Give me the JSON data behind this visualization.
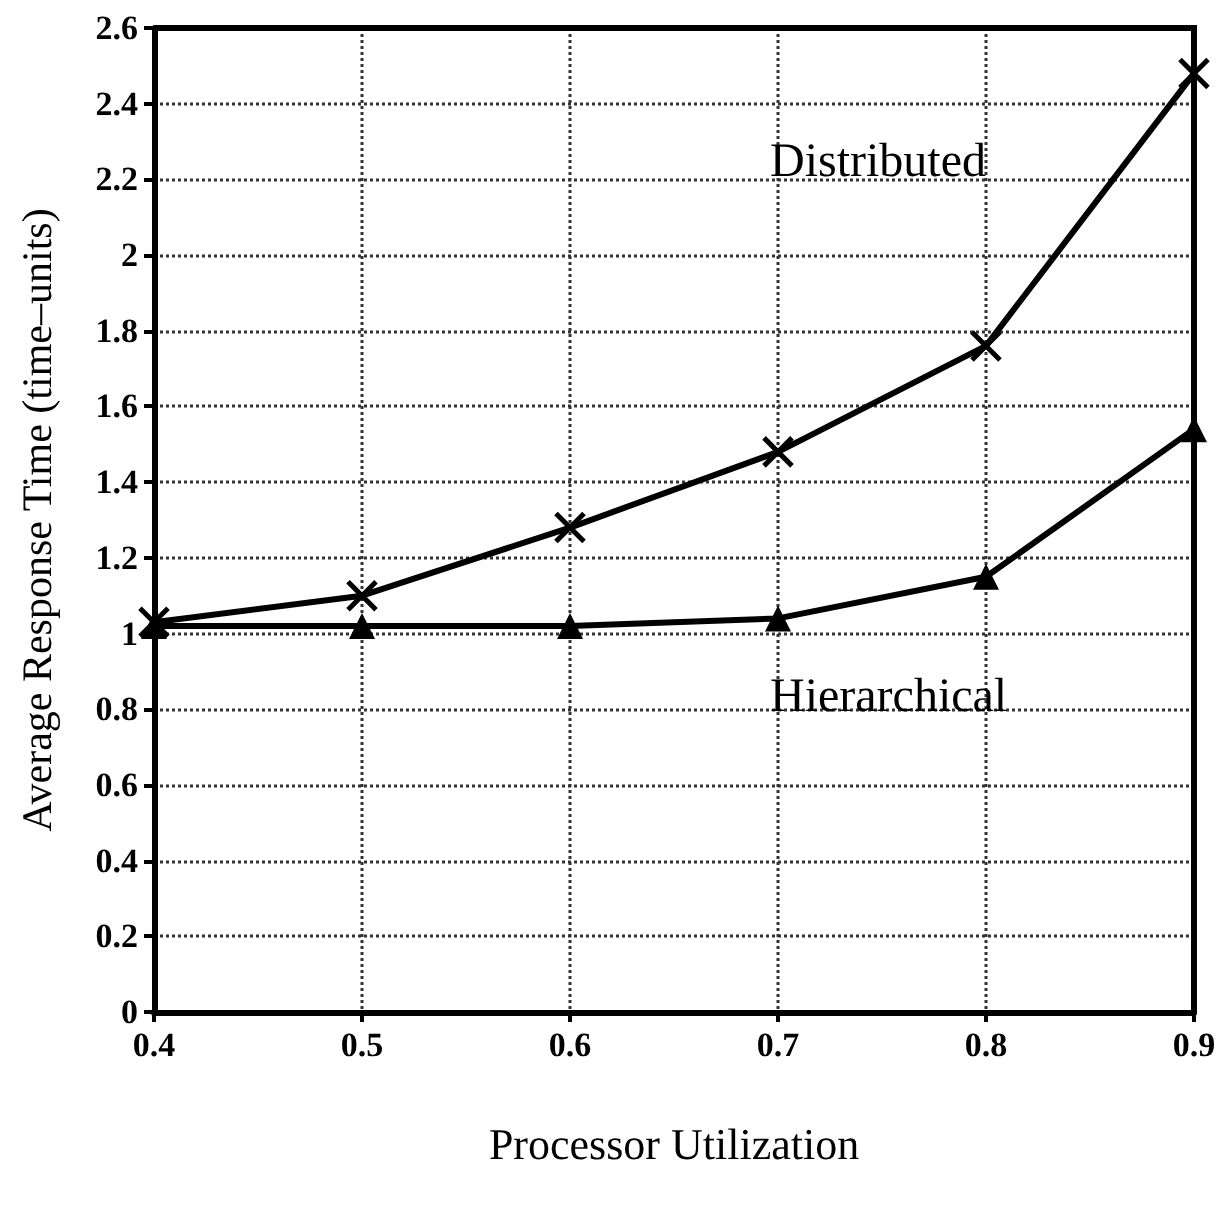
{
  "chart_data": {
    "type": "line",
    "xlabel": "Processor Utilization",
    "ylabel": "Average Response Time (time–units)",
    "x": [
      0.4,
      0.5,
      0.6,
      0.7,
      0.8,
      0.9
    ],
    "series": [
      {
        "name": "Distributed",
        "color": "#000000",
        "marker": "cross",
        "values": [
          1.03,
          1.1,
          1.28,
          1.48,
          1.76,
          2.48
        ]
      },
      {
        "name": "Hierarchical",
        "color": "#000000",
        "marker": "triangle",
        "values": [
          1.02,
          1.02,
          1.02,
          1.04,
          1.15,
          1.54
        ]
      }
    ],
    "xlim": [
      0.4,
      0.9
    ],
    "xticks": [
      0.4,
      0.5,
      0.6,
      0.7,
      0.8,
      0.9
    ],
    "ylim": [
      0,
      2.6
    ],
    "yticks": [
      0,
      0.2,
      0.4,
      0.6,
      0.8,
      1,
      1.2,
      1.4,
      1.6,
      1.8,
      2,
      2.2,
      2.4,
      2.6
    ],
    "grid": true,
    "legend": false,
    "line_style": "solid"
  }
}
